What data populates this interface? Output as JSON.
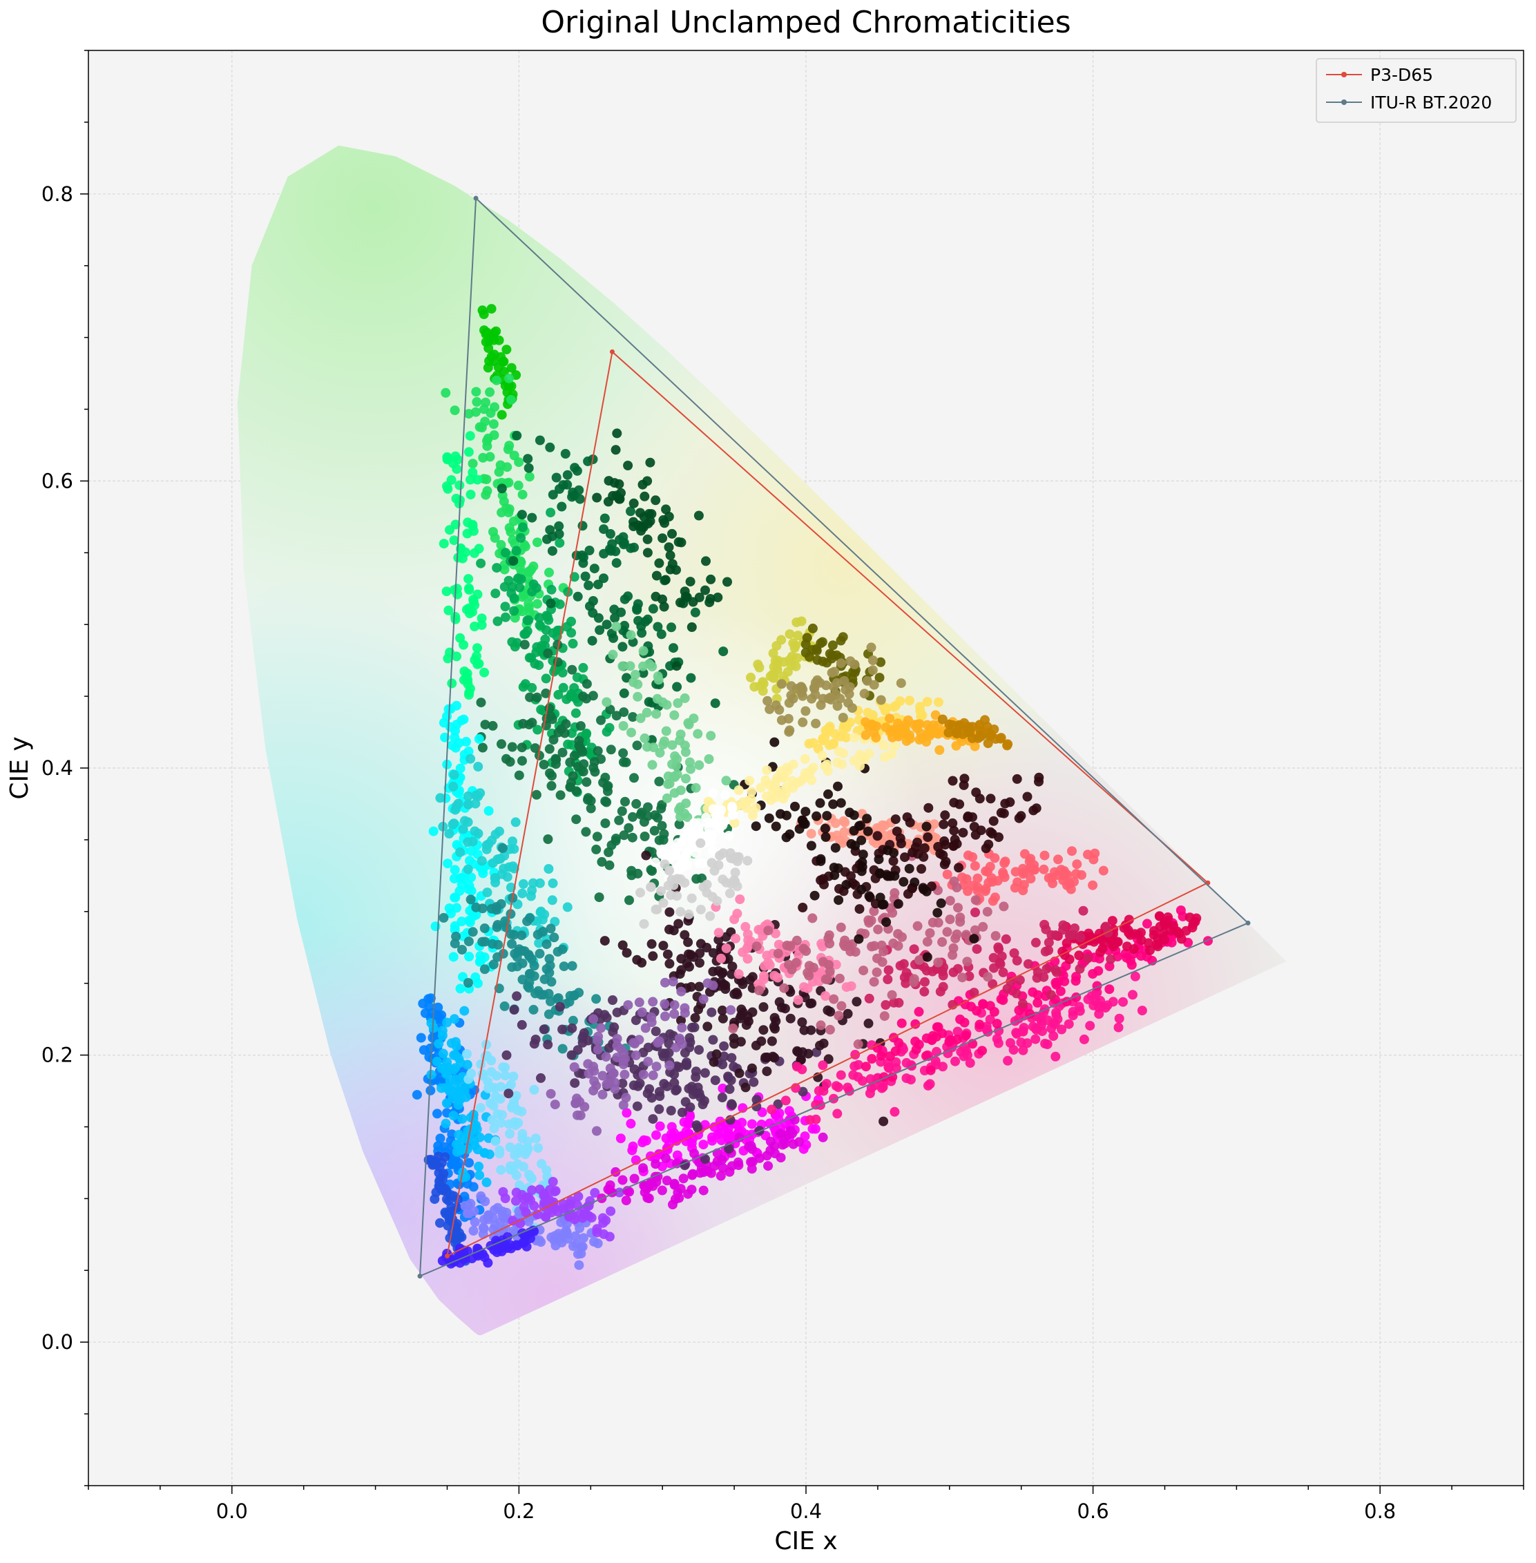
{
  "chart_data": {
    "type": "scatter",
    "title": "Original Unclamped Chromaticities",
    "xlabel": "CIE x",
    "ylabel": "CIE y",
    "xlim": [
      -0.1,
      0.9
    ],
    "ylim": [
      -0.1,
      0.9
    ],
    "x_ticks": [
      "0.0",
      "0.2",
      "0.4",
      "0.6",
      "0.8"
    ],
    "y_ticks": [
      "0.0",
      "0.2",
      "0.4",
      "0.6",
      "0.8"
    ],
    "x_tick_values": [
      0.0,
      0.2,
      0.4,
      0.6,
      0.8
    ],
    "y_tick_values": [
      0.0,
      0.2,
      0.4,
      0.6,
      0.8
    ],
    "grid": true,
    "legend_position": "top-right",
    "background_color": "#f4f4f4",
    "spectral_locus": [
      [
        0.1741,
        0.005
      ],
      [
        0.174,
        0.005
      ],
      [
        0.1738,
        0.0049
      ],
      [
        0.1733,
        0.0048
      ],
      [
        0.1726,
        0.0048
      ],
      [
        0.1714,
        0.0051
      ],
      [
        0.1689,
        0.0069
      ],
      [
        0.1644,
        0.0109
      ],
      [
        0.1566,
        0.0177
      ],
      [
        0.144,
        0.0297
      ],
      [
        0.1241,
        0.0578
      ],
      [
        0.0913,
        0.1327
      ],
      [
        0.0687,
        0.2007
      ],
      [
        0.0454,
        0.295
      ],
      [
        0.0235,
        0.4127
      ],
      [
        0.0082,
        0.5384
      ],
      [
        0.0039,
        0.6548
      ],
      [
        0.0139,
        0.7502
      ],
      [
        0.0389,
        0.812
      ],
      [
        0.0743,
        0.8338
      ],
      [
        0.1142,
        0.8262
      ],
      [
        0.1547,
        0.8059
      ],
      [
        0.1929,
        0.7816
      ],
      [
        0.2296,
        0.7543
      ],
      [
        0.2658,
        0.7243
      ],
      [
        0.3016,
        0.6923
      ],
      [
        0.3373,
        0.6589
      ],
      [
        0.3731,
        0.6245
      ],
      [
        0.4087,
        0.5896
      ],
      [
        0.4441,
        0.5547
      ],
      [
        0.4788,
        0.5202
      ],
      [
        0.5125,
        0.4866
      ],
      [
        0.5448,
        0.4544
      ],
      [
        0.5752,
        0.4242
      ],
      [
        0.6029,
        0.3965
      ],
      [
        0.627,
        0.3725
      ],
      [
        0.6482,
        0.3514
      ],
      [
        0.6658,
        0.334
      ],
      [
        0.6801,
        0.3197
      ],
      [
        0.6915,
        0.3083
      ],
      [
        0.7006,
        0.2993
      ],
      [
        0.7079,
        0.292
      ],
      [
        0.714,
        0.2859
      ],
      [
        0.719,
        0.2809
      ],
      [
        0.723,
        0.277
      ],
      [
        0.726,
        0.274
      ],
      [
        0.7283,
        0.2717
      ],
      [
        0.73,
        0.27
      ],
      [
        0.7311,
        0.2689
      ],
      [
        0.732,
        0.268
      ],
      [
        0.7327,
        0.2673
      ],
      [
        0.7334,
        0.2666
      ],
      [
        0.734,
        0.266
      ],
      [
        0.7344,
        0.2656
      ],
      [
        0.7346,
        0.2654
      ],
      [
        0.7347,
        0.2653
      ]
    ],
    "series": [
      {
        "name": "P3-D65",
        "color": "#e04a3a",
        "points": [
          [
            0.68,
            0.32
          ],
          [
            0.265,
            0.69
          ],
          [
            0.15,
            0.06
          ],
          [
            0.68,
            0.32
          ]
        ]
      },
      {
        "name": "ITU-R BT.2020",
        "color": "#5f7a8a",
        "points": [
          [
            0.708,
            0.292
          ],
          [
            0.17,
            0.797
          ],
          [
            0.131,
            0.046
          ],
          [
            0.708,
            0.292
          ]
        ]
      }
    ],
    "scatter_clusters": [
      {
        "color": "#00c800",
        "from": [
          0.175,
          0.72
        ],
        "to": [
          0.195,
          0.65
        ],
        "n": 40,
        "spread": 0.008
      },
      {
        "color": "#20e060",
        "from": [
          0.175,
          0.66
        ],
        "to": [
          0.21,
          0.5
        ],
        "n": 110,
        "spread": 0.016
      },
      {
        "color": "#00ff80",
        "from": [
          0.16,
          0.62
        ],
        "to": [
          0.165,
          0.45
        ],
        "n": 80,
        "spread": 0.01
      },
      {
        "color": "#00aa55",
        "from": [
          0.2,
          0.55
        ],
        "to": [
          0.24,
          0.4
        ],
        "n": 130,
        "spread": 0.025
      },
      {
        "color": "#006633",
        "from": [
          0.22,
          0.62
        ],
        "to": [
          0.3,
          0.45
        ],
        "n": 120,
        "spread": 0.03
      },
      {
        "color": "#004d22",
        "from": [
          0.27,
          0.61
        ],
        "to": [
          0.33,
          0.5
        ],
        "n": 70,
        "spread": 0.018
      },
      {
        "color": "#107040",
        "from": [
          0.2,
          0.45
        ],
        "to": [
          0.3,
          0.33
        ],
        "n": 150,
        "spread": 0.035
      },
      {
        "color": "#70d090",
        "from": [
          0.28,
          0.48
        ],
        "to": [
          0.33,
          0.36
        ],
        "n": 80,
        "spread": 0.02
      },
      {
        "color": "#00ffff",
        "from": [
          0.155,
          0.44
        ],
        "to": [
          0.17,
          0.25
        ],
        "n": 120,
        "spread": 0.014
      },
      {
        "color": "#20d0d0",
        "from": [
          0.16,
          0.38
        ],
        "to": [
          0.22,
          0.28
        ],
        "n": 90,
        "spread": 0.02
      },
      {
        "color": "#1a8c8c",
        "from": [
          0.17,
          0.3
        ],
        "to": [
          0.25,
          0.22
        ],
        "n": 110,
        "spread": 0.025
      },
      {
        "color": "#0080ff",
        "from": [
          0.14,
          0.24
        ],
        "to": [
          0.16,
          0.09
        ],
        "n": 110,
        "spread": 0.012
      },
      {
        "color": "#00c0ff",
        "from": [
          0.15,
          0.22
        ],
        "to": [
          0.17,
          0.12
        ],
        "n": 90,
        "spread": 0.012
      },
      {
        "color": "#1e50e0",
        "from": [
          0.14,
          0.13
        ],
        "to": [
          0.16,
          0.06
        ],
        "n": 60,
        "spread": 0.006
      },
      {
        "color": "#80e0ff",
        "from": [
          0.18,
          0.2
        ],
        "to": [
          0.21,
          0.1
        ],
        "n": 90,
        "spread": 0.014
      },
      {
        "color": "#8080ff",
        "from": [
          0.17,
          0.09
        ],
        "to": [
          0.25,
          0.07
        ],
        "n": 90,
        "spread": 0.012
      },
      {
        "color": "#4020ff",
        "from": [
          0.15,
          0.055
        ],
        "to": [
          0.21,
          0.075
        ],
        "n": 60,
        "spread": 0.005
      },
      {
        "color": "#a040ff",
        "from": [
          0.2,
          0.1
        ],
        "to": [
          0.26,
          0.085
        ],
        "n": 70,
        "spread": 0.012
      },
      {
        "color": "#ff00ff",
        "from": [
          0.28,
          0.14
        ],
        "to": [
          0.4,
          0.15
        ],
        "n": 120,
        "spread": 0.015
      },
      {
        "color": "#e000e0",
        "from": [
          0.26,
          0.1
        ],
        "to": [
          0.4,
          0.14
        ],
        "n": 90,
        "spread": 0.012
      },
      {
        "color": "#503060",
        "from": [
          0.23,
          0.22
        ],
        "to": [
          0.36,
          0.17
        ],
        "n": 160,
        "spread": 0.035
      },
      {
        "color": "#301020",
        "from": [
          0.3,
          0.28
        ],
        "to": [
          0.42,
          0.2
        ],
        "n": 160,
        "spread": 0.035
      },
      {
        "color": "#9060b0",
        "from": [
          0.24,
          0.17
        ],
        "to": [
          0.32,
          0.24
        ],
        "n": 80,
        "spread": 0.02
      },
      {
        "color": "#ff1493",
        "from": [
          0.4,
          0.17
        ],
        "to": [
          0.62,
          0.24
        ],
        "n": 160,
        "spread": 0.015
      },
      {
        "color": "#ff0080",
        "from": [
          0.45,
          0.2
        ],
        "to": [
          0.67,
          0.29
        ],
        "n": 120,
        "spread": 0.014
      },
      {
        "color": "#e00050",
        "from": [
          0.58,
          0.28
        ],
        "to": [
          0.67,
          0.29
        ],
        "n": 80,
        "spread": 0.01
      },
      {
        "color": "#cc2060",
        "from": [
          0.45,
          0.25
        ],
        "to": [
          0.6,
          0.28
        ],
        "n": 90,
        "spread": 0.02
      },
      {
        "color": "#ff6070",
        "from": [
          0.5,
          0.32
        ],
        "to": [
          0.6,
          0.33
        ],
        "n": 80,
        "spread": 0.012
      },
      {
        "color": "#ff9a8a",
        "from": [
          0.4,
          0.36
        ],
        "to": [
          0.5,
          0.35
        ],
        "n": 70,
        "spread": 0.01
      },
      {
        "color": "#ff80b0",
        "from": [
          0.35,
          0.28
        ],
        "to": [
          0.42,
          0.26
        ],
        "n": 80,
        "spread": 0.02
      },
      {
        "color": "#c06080",
        "from": [
          0.38,
          0.25
        ],
        "to": [
          0.52,
          0.3
        ],
        "n": 110,
        "spread": 0.03
      },
      {
        "color": "#300a10",
        "from": [
          0.42,
          0.32
        ],
        "to": [
          0.55,
          0.38
        ],
        "n": 100,
        "spread": 0.025
      },
      {
        "color": "#1a0a0a",
        "from": [
          0.38,
          0.38
        ],
        "to": [
          0.48,
          0.3
        ],
        "n": 80,
        "spread": 0.03
      },
      {
        "color": "#ffe060",
        "from": [
          0.4,
          0.42
        ],
        "to": [
          0.48,
          0.44
        ],
        "n": 60,
        "spread": 0.008
      },
      {
        "color": "#fff0a0",
        "from": [
          0.34,
          0.37
        ],
        "to": [
          0.46,
          0.42
        ],
        "n": 80,
        "spread": 0.01
      },
      {
        "color": "#ffb020",
        "from": [
          0.44,
          0.43
        ],
        "to": [
          0.52,
          0.42
        ],
        "n": 70,
        "spread": 0.008
      },
      {
        "color": "#c08000",
        "from": [
          0.5,
          0.43
        ],
        "to": [
          0.54,
          0.42
        ],
        "n": 35,
        "spread": 0.006
      },
      {
        "color": "#d0d040",
        "from": [
          0.37,
          0.46
        ],
        "to": [
          0.4,
          0.49
        ],
        "n": 50,
        "spread": 0.012
      },
      {
        "color": "#606000",
        "from": [
          0.4,
          0.49
        ],
        "to": [
          0.44,
          0.46
        ],
        "n": 40,
        "spread": 0.012
      },
      {
        "color": "#a09050",
        "from": [
          0.38,
          0.44
        ],
        "to": [
          0.45,
          0.47
        ],
        "n": 60,
        "spread": 0.015
      },
      {
        "color": "#ffffff",
        "from": [
          0.3,
          0.33
        ],
        "to": [
          0.35,
          0.37
        ],
        "n": 70,
        "spread": 0.012
      },
      {
        "color": "#d0d0d0",
        "from": [
          0.29,
          0.3
        ],
        "to": [
          0.36,
          0.34
        ],
        "n": 50,
        "spread": 0.02
      }
    ]
  }
}
